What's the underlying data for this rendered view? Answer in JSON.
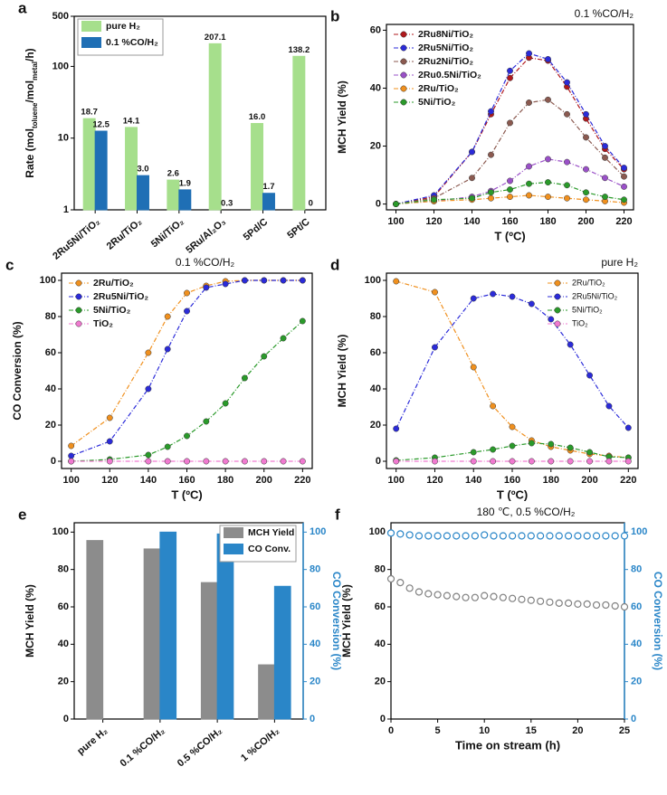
{
  "chart_data": [
    {
      "type": "bar",
      "label": "a",
      "log": true,
      "legend": "upper left",
      "ylabel": [
        "Rate (mol",
        "toluene",
        "/mol",
        "metal",
        "/h)"
      ],
      "categories": [
        "2Ru5Ni/TiO₂",
        "2Ru/TiO₂",
        "5Ni/TiO₂",
        "5Ru/Al₂O₃",
        "5Pd/C",
        "5Pt/C"
      ],
      "ylim": [
        1,
        500
      ],
      "yticks": [
        1,
        10,
        100,
        500
      ],
      "series": [
        {
          "name": "pure H₂",
          "color": "#a6df8c",
          "values": [
            18.7,
            14.1,
            2.6,
            207.1,
            16,
            138.2
          ],
          "value_labels": [
            "18.7",
            "14.1",
            "2.6",
            "207.1",
            "16.0",
            "138.2"
          ]
        },
        {
          "name": "0.1 %CO/H₂",
          "color": "#1f6fb5",
          "values": [
            12.5,
            3,
            1.9,
            0.3,
            1.7,
            0
          ],
          "value_labels": [
            "12.5",
            "3.0",
            "1.9",
            "0.3",
            "1.7",
            "0"
          ]
        }
      ]
    },
    {
      "type": "line",
      "label": "b",
      "title": "0.1 %CO/H₂",
      "legend": "upper left",
      "xlabel": "T (ºC)",
      "ylabel": "MCH Yield (%)",
      "x": [
        100,
        120,
        140,
        150,
        160,
        170,
        180,
        190,
        200,
        210,
        220
      ],
      "xlim": [
        95,
        225
      ],
      "xticks": [
        100,
        120,
        140,
        160,
        180,
        200,
        220
      ],
      "ylim": [
        -2,
        62
      ],
      "yticks": [
        0,
        20,
        40,
        60
      ],
      "series": [
        {
          "name": "2Ru8Ni/TiO₂",
          "color": "#b0181c",
          "values": [
            0,
            2.5,
            18,
            31,
            43.5,
            50.5,
            49.5,
            40.5,
            29.5,
            19,
            12
          ]
        },
        {
          "name": "2Ru5Ni/TiO₂",
          "color": "#2b2bd9",
          "values": [
            0,
            3,
            18,
            32,
            46,
            52,
            50,
            42,
            31,
            20,
            12.5
          ]
        },
        {
          "name": "2Ru2Ni/TiO₂",
          "color": "#8b5a50",
          "values": [
            0,
            2,
            9,
            17,
            28,
            35,
            36,
            31,
            23,
            16,
            9.5
          ]
        },
        {
          "name": "2Ru0.5Ni/TiO₂",
          "color": "#9a50c8",
          "values": [
            0,
            1,
            2.5,
            4.5,
            8,
            13,
            15.5,
            14.5,
            12,
            9,
            6
          ]
        },
        {
          "name": "2Ru/TiO₂",
          "color": "#f0901e",
          "values": [
            0,
            1,
            1.5,
            2,
            2.5,
            3,
            2.5,
            2,
            1.5,
            1,
            0.5
          ]
        },
        {
          "name": "5Ni/TiO₂",
          "color": "#2a9a2a",
          "values": [
            0,
            1.5,
            2,
            4,
            5,
            7,
            7.5,
            6.5,
            4,
            2.5,
            1.5
          ]
        }
      ]
    },
    {
      "type": "line",
      "label": "c",
      "title": "0.1 %CO/H₂",
      "legend": "upper left",
      "xlabel": "T (ºC)",
      "ylabel": "CO Conversion (%)",
      "x": [
        100,
        120,
        140,
        150,
        160,
        170,
        180,
        190,
        200,
        210,
        220
      ],
      "xlim": [
        95,
        225
      ],
      "xticks": [
        100,
        120,
        140,
        160,
        180,
        200,
        220
      ],
      "ylim": [
        -4,
        104
      ],
      "yticks": [
        0,
        20,
        40,
        60,
        80,
        100
      ],
      "series": [
        {
          "name": "2Ru/TiO₂",
          "color": "#f0901e",
          "values": [
            8.5,
            24,
            60,
            80,
            93,
            97,
            99.5,
            100,
            100,
            100,
            100
          ]
        },
        {
          "name": "2Ru5Ni/TiO₂",
          "color": "#2b2bd9",
          "values": [
            3,
            11,
            40,
            62,
            83,
            96,
            98,
            100,
            100,
            100,
            100
          ]
        },
        {
          "name": "5Ni/TiO₂",
          "color": "#2a9a2a",
          "values": [
            0,
            1,
            3.5,
            8,
            14,
            22,
            32,
            46,
            58,
            68,
            77.5
          ]
        },
        {
          "name": "TiO₂",
          "color": "#f07ad0",
          "values": [
            0,
            0,
            0,
            0,
            0,
            0,
            0,
            0,
            0,
            0,
            0
          ]
        }
      ]
    },
    {
      "type": "line",
      "label": "d",
      "title": "pure H₂",
      "legend": "upper right",
      "xlabel": "T (ºC)",
      "ylabel": "MCH Yield (%)",
      "x": [
        100,
        120,
        140,
        150,
        160,
        170,
        180,
        190,
        200,
        210,
        220
      ],
      "xlim": [
        95,
        225
      ],
      "xticks": [
        100,
        120,
        140,
        160,
        180,
        200,
        220
      ],
      "ylim": [
        -4,
        104
      ],
      "yticks": [
        0,
        20,
        40,
        60,
        80,
        100
      ],
      "series": [
        {
          "name": "2Ru/TiO₂",
          "color": "#f0901e",
          "values": [
            99.5,
            93.5,
            52,
            30.5,
            19,
            11.5,
            8,
            6,
            4,
            3,
            2
          ]
        },
        {
          "name": "2Ru5Ni/TiO₂",
          "color": "#2b2bd9",
          "values": [
            18,
            63,
            90,
            92.5,
            91,
            87,
            78.5,
            64.5,
            47.5,
            30.5,
            18.5
          ]
        },
        {
          "name": "5Ni/TiO₂",
          "color": "#2a9a2a",
          "values": [
            0.5,
            2,
            5,
            6.5,
            8.5,
            10,
            9.5,
            7.5,
            5,
            2.5,
            2
          ]
        },
        {
          "name": "TiO₂",
          "color": "#f07ad0",
          "values": [
            0,
            0,
            0,
            0,
            0,
            0,
            0,
            0,
            0,
            0,
            0
          ]
        }
      ]
    },
    {
      "type": "bar",
      "label": "e",
      "legend": "upper right",
      "ylabel": "MCH Yield (%)",
      "y2label": "CO Conversion (%)",
      "categories": [
        "pure H₂",
        "0.1 %CO/H₂",
        "0.5 %CO/H₂",
        "1 %CO/H₂"
      ],
      "ylim": [
        0,
        105
      ],
      "yticks": [
        0,
        20,
        40,
        60,
        80,
        100
      ],
      "y2lim": [
        0,
        105
      ],
      "y2ticks": [
        0,
        20,
        40,
        60,
        80,
        100
      ],
      "series": [
        {
          "name": "MCH Yield",
          "color": "#8c8c8c",
          "values": [
            95.5,
            91,
            73,
            29
          ]
        },
        {
          "name": "CO Conv.",
          "color": "#2a86c8",
          "axis": "y2",
          "values": [
            null,
            100,
            99,
            71
          ]
        }
      ]
    },
    {
      "type": "scatter",
      "label": "f",
      "title": "180 ℃, 0.5 %CO/H₂",
      "xlabel": "Time on stream (h)",
      "ylabel": "MCH Yield (%)",
      "y2label": "CO Conversion (%)",
      "x": [
        0,
        1,
        2,
        3,
        4,
        5,
        6,
        7,
        8,
        9,
        10,
        11,
        12,
        13,
        14,
        15,
        16,
        17,
        18,
        19,
        20,
        21,
        22,
        23,
        24,
        25
      ],
      "xlim": [
        0,
        25
      ],
      "xticks": [
        0,
        5,
        10,
        15,
        20,
        25
      ],
      "ylim": [
        0,
        105
      ],
      "yticks": [
        0,
        20,
        40,
        60,
        80,
        100
      ],
      "y2lim": [
        0,
        105
      ],
      "y2ticks": [
        0,
        20,
        40,
        60,
        80,
        100
      ],
      "series": [
        {
          "color": "#808080",
          "values": [
            75,
            73,
            70,
            68,
            67,
            66.5,
            66,
            65.5,
            65,
            65,
            66,
            65.5,
            65,
            64.5,
            64,
            63.5,
            63,
            62.5,
            62,
            62,
            61.5,
            61.5,
            61,
            61,
            60.5,
            60
          ]
        },
        {
          "color": "#2a86c8",
          "axis": "y2",
          "values": [
            99.5,
            99,
            98.5,
            98,
            98,
            98,
            98,
            98,
            98,
            98,
            98.5,
            98,
            98,
            98,
            98,
            98,
            98,
            98,
            98,
            98,
            98,
            98,
            98,
            98,
            98,
            98
          ]
        }
      ]
    }
  ]
}
